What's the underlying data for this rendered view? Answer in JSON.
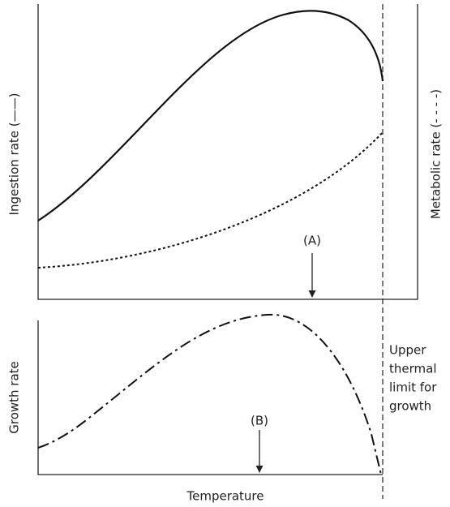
{
  "panels": {
    "top": {
      "y_label_left": "Ingestion rate (——)",
      "y_label_right": "Metabolic rate (- - - -)",
      "marker": "(A)"
    },
    "bottom": {
      "y_label": "Growth rate",
      "marker": "(B)",
      "x_label": "Temperature"
    }
  },
  "limit_label": [
    "Upper",
    "thermal",
    "limit for",
    "growth"
  ]
}
